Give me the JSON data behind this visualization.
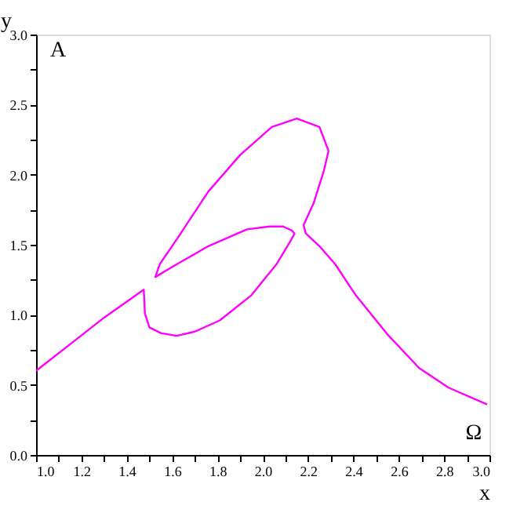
{
  "chart_data": {
    "type": "line",
    "xlabel": "x",
    "ylabel": "y",
    "annotations": [
      "A",
      "Ω"
    ],
    "xlim": [
      1.0,
      3.0
    ],
    "ylim": [
      0.0,
      3.0
    ],
    "xticks": [
      {
        "value": 1.0,
        "label": "1.0"
      },
      {
        "value": 1.1,
        "label": null
      },
      {
        "value": 1.2,
        "label": "1.2"
      },
      {
        "value": 1.3,
        "label": null
      },
      {
        "value": 1.4,
        "label": "1.4"
      },
      {
        "value": 1.5,
        "label": null
      },
      {
        "value": 1.6,
        "label": "1.6"
      },
      {
        "value": 1.7,
        "label": null
      },
      {
        "value": 1.8,
        "label": "1.8"
      },
      {
        "value": 1.9,
        "label": null
      },
      {
        "value": 2.0,
        "label": "2.0"
      },
      {
        "value": 2.1,
        "label": null
      },
      {
        "value": 2.2,
        "label": "2.2"
      },
      {
        "value": 2.3,
        "label": null
      },
      {
        "value": 2.4,
        "label": "2.4"
      },
      {
        "value": 2.5,
        "label": null
      },
      {
        "value": 2.6,
        "label": "2.6"
      },
      {
        "value": 2.7,
        "label": null
      },
      {
        "value": 2.8,
        "label": "2.8"
      },
      {
        "value": 2.9,
        "label": null
      },
      {
        "value": 3.0,
        "label": "3.0"
      }
    ],
    "yticks": [
      {
        "value": 0.0,
        "label": "0.0"
      },
      {
        "value": 0.25,
        "label": null
      },
      {
        "value": 0.5,
        "label": "0.5"
      },
      {
        "value": 0.75,
        "label": null
      },
      {
        "value": 1.0,
        "label": "1.0"
      },
      {
        "value": 1.25,
        "label": null
      },
      {
        "value": 1.5,
        "label": "1.5"
      },
      {
        "value": 1.75,
        "label": null
      },
      {
        "value": 2.0,
        "label": "2.0"
      },
      {
        "value": 2.25,
        "label": null
      },
      {
        "value": 2.5,
        "label": "2.5"
      },
      {
        "value": 2.75,
        "label": null
      },
      {
        "value": 3.0,
        "label": "3.0"
      }
    ],
    "grid": false,
    "line_style": "solid",
    "series": [
      {
        "color": "#ff00ff",
        "x": [
          1.0,
          1.15,
          1.3,
          1.475,
          1.48,
          1.5,
          1.55,
          1.62,
          1.7,
          1.81,
          1.95,
          2.06,
          2.12,
          2.14,
          2.13,
          2.09,
          2.03,
          1.93,
          1.76,
          1.62,
          1.526,
          1.545,
          1.625,
          1.76,
          1.9,
          2.04,
          2.15,
          2.25,
          2.29,
          2.27,
          2.225,
          2.18,
          2.19,
          2.25,
          2.32,
          2.41,
          2.55,
          2.69,
          2.82,
          2.99
        ],
        "values": [
          0.6,
          0.79,
          0.98,
          1.18,
          1.01,
          0.91,
          0.87,
          0.85,
          0.88,
          0.96,
          1.14,
          1.36,
          1.52,
          1.58,
          1.6,
          1.63,
          1.63,
          1.61,
          1.49,
          1.36,
          1.27,
          1.36,
          1.55,
          1.88,
          2.14,
          2.34,
          2.4,
          2.34,
          2.17,
          2.03,
          1.8,
          1.64,
          1.58,
          1.49,
          1.36,
          1.14,
          0.86,
          0.62,
          0.48,
          0.36
        ]
      }
    ]
  }
}
